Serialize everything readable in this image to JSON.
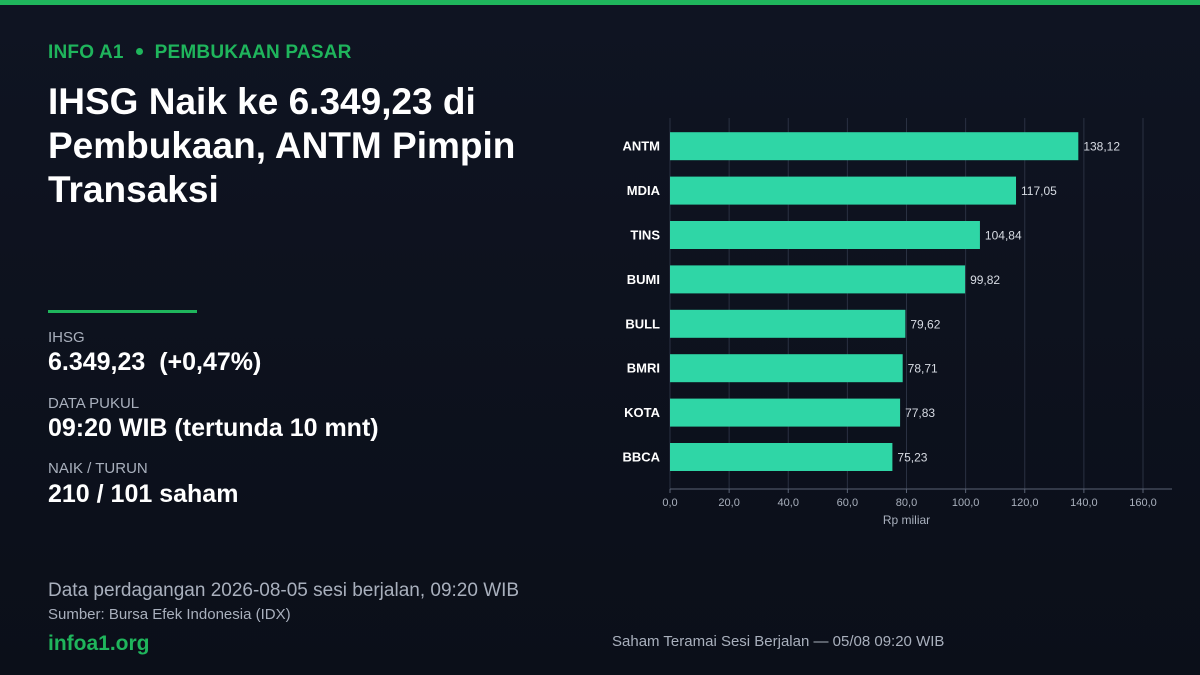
{
  "kicker": {
    "brand": "INFO A1",
    "section": "PEMBUKAAN PASAR"
  },
  "headline": "IHSG Naik ke 6.349,23 di Pembukaan, ANTM Pimpin Transaksi",
  "stats": [
    {
      "label": "IHSG",
      "value": "6.349,23  (+0,47%)"
    },
    {
      "label": "DATA PUKUL",
      "value": "09:20 WIB (tertunda 10 mnt)"
    },
    {
      "label": "NAIK / TURUN",
      "value": "210 / 101 saham"
    }
  ],
  "footnote": "Data perdagangan 2026-08-05 sesi berjalan, 09:20 WIB",
  "source": "Sumber: Bursa Efek Indonesia (IDX)",
  "site": "infoa1.org",
  "colors": {
    "accent": "#1fb55c",
    "bar": "#2fd6a6",
    "background": "#0d1220",
    "muted": "#a9b0bd"
  },
  "chart_data": {
    "type": "bar",
    "orientation": "horizontal",
    "categories": [
      "ANTM",
      "MDIA",
      "TINS",
      "BUMI",
      "BULL",
      "BMRI",
      "KOTA",
      "BBCA"
    ],
    "values": [
      138.12,
      117.05,
      104.84,
      99.82,
      79.62,
      78.71,
      77.83,
      75.23
    ],
    "value_labels": [
      "138,12",
      "117,05",
      "104,84",
      "99,82",
      "79,62",
      "78,71",
      "77,83",
      "75,23"
    ],
    "xlabel": "Rp miliar",
    "xlim": [
      0,
      160
    ],
    "xticks": [
      0,
      20,
      40,
      60,
      80,
      100,
      120,
      140,
      160
    ],
    "xtick_labels": [
      "0,0",
      "20,0",
      "40,0",
      "60,0",
      "80,0",
      "100,0",
      "120,0",
      "140,0",
      "160,0"
    ],
    "grid": "vertical",
    "caption": "Saham Teramai Sesi Berjalan — 05/08 09:20 WIB"
  }
}
